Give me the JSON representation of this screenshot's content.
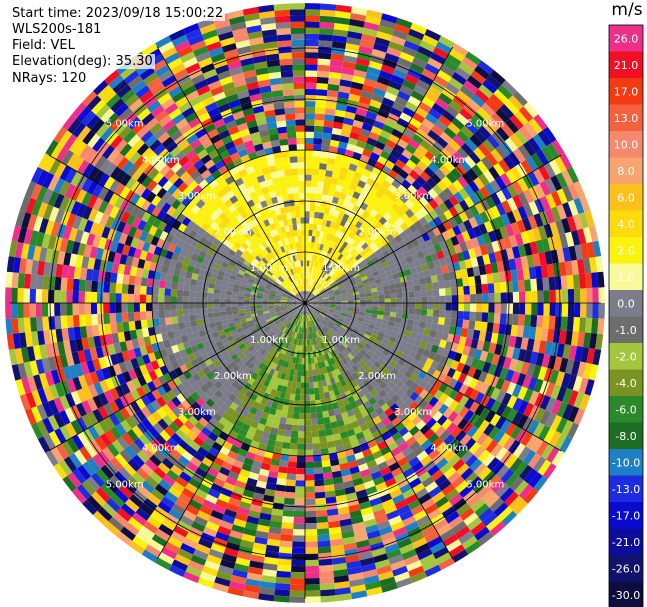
{
  "header": {
    "start_time": "Start time: 2023/09/18 15:00:22",
    "site": "WLS200s-181",
    "field": "Field: VEL",
    "elevation": "Elevation(deg): 35.30",
    "nrays": "NRays: 120"
  },
  "colorbar": {
    "unit": "m/s",
    "levels": [
      {
        "label": "26.0",
        "color": "#ee2f8a"
      },
      {
        "label": "21.0",
        "color": "#f20f23"
      },
      {
        "label": "17.0",
        "color": "#f43a12"
      },
      {
        "label": "13.0",
        "color": "#f5613e"
      },
      {
        "label": "10.0",
        "color": "#f6896b"
      },
      {
        "label": "8.0",
        "color": "#f8a46e"
      },
      {
        "label": "6.0",
        "color": "#fbc11a"
      },
      {
        "label": "4.0",
        "color": "#fdda0b"
      },
      {
        "label": "2.0",
        "color": "#fbf20e"
      },
      {
        "label": "1.0",
        "color": "#f9f99a"
      },
      {
        "label": "0.0",
        "color": "#7c7c8a"
      },
      {
        "label": "-1.0",
        "color": "#6d6d6d"
      },
      {
        "label": "-2.0",
        "color": "#a4c63d"
      },
      {
        "label": "-4.0",
        "color": "#7a9424"
      },
      {
        "label": "-6.0",
        "color": "#2a8a2a"
      },
      {
        "label": "-8.0",
        "color": "#1c6f22"
      },
      {
        "label": "-10.0",
        "color": "#1f7fc4"
      },
      {
        "label": "-13.0",
        "color": "#1d2ce0"
      },
      {
        "label": "-17.0",
        "color": "#0b0bcf"
      },
      {
        "label": "-21.0",
        "color": "#0d0d9c"
      },
      {
        "label": "-26.0",
        "color": "#11126e"
      },
      {
        "label": "-30.0",
        "color": "#0d0d40"
      }
    ]
  },
  "chart_data": {
    "type": "heatmap",
    "projection": "polar PPI",
    "field": "VEL",
    "n_rays": 120,
    "range_rings_km": [
      1.0,
      2.0,
      3.0,
      4.0,
      5.0
    ],
    "ring_labels": [
      "1.00km",
      "2.00km",
      "3.00km",
      "4.00km",
      "5.00km"
    ],
    "max_range_km": 5.8,
    "spokes_deg": [
      0,
      30,
      60,
      90,
      120,
      150,
      180,
      210,
      240,
      270,
      300,
      330
    ],
    "velocity_regions": [
      {
        "sector": "north half",
        "range_km": [
          0.3,
          3.0
        ],
        "value_ms": 2.0,
        "color_name": "yellow"
      },
      {
        "sector": "east / west flanks",
        "range_km": [
          0.5,
          2.6
        ],
        "value_ms": 0.0,
        "color_name": "gray"
      },
      {
        "sector": "south half",
        "range_km": [
          0.3,
          3.0
        ],
        "value_ms": -3.0,
        "color_name": "olive green"
      },
      {
        "sector": "all azimuths",
        "range_km": [
          3.0,
          5.8
        ],
        "value_ms": "noisy",
        "color_name": "random palette"
      }
    ]
  }
}
